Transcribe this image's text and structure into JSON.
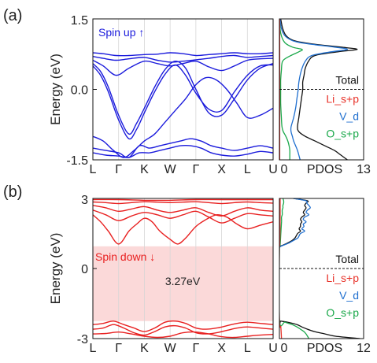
{
  "chart_data": [
    {
      "panel_label": "(a)",
      "type": "line",
      "title": "",
      "ylabel": "Energy (eV)",
      "ylim": [
        -1.5,
        1.5
      ],
      "yticks": [
        "1.5",
        "0.0",
        "-1.5"
      ],
      "ytick_values": [
        1.5,
        0.0,
        -1.5
      ],
      "xticks": [
        "L",
        "Γ",
        "K",
        "W",
        "Γ",
        "X",
        "L",
        "U"
      ],
      "annotation": "Spin up ↑",
      "band_color": "#1b1bdc",
      "bands": [
        {
          "x": [
            0,
            0.4,
            0.9,
            1.4,
            2,
            2.5,
            3,
            3.5,
            4,
            4.5,
            5,
            5.5,
            6,
            6.5,
            7
          ],
          "y": [
            0.78,
            0.76,
            0.72,
            0.72,
            0.74,
            0.75,
            0.78,
            0.76,
            0.72,
            0.74,
            0.76,
            0.78,
            0.76,
            0.76,
            0.78
          ]
        },
        {
          "x": [
            0,
            0.4,
            0.9,
            1.4,
            2,
            2.5,
            3,
            3.5,
            4,
            4.5,
            5,
            5.5,
            6,
            6.5,
            7
          ],
          "y": [
            0.7,
            0.66,
            0.62,
            0.65,
            0.68,
            0.62,
            0.58,
            0.6,
            0.63,
            0.66,
            0.7,
            0.72,
            0.68,
            0.7,
            0.72
          ]
        },
        {
          "x": [
            0,
            0.4,
            0.9,
            1.4,
            2,
            2.5,
            3,
            3.5,
            4,
            4.5,
            5,
            5.5,
            6,
            6.5,
            7
          ],
          "y": [
            0.62,
            0.5,
            0.3,
            0.45,
            0.6,
            0.55,
            0.5,
            0.55,
            0.6,
            0.48,
            0.4,
            0.5,
            0.62,
            0.65,
            0.66
          ]
        },
        {
          "x": [
            0,
            0.3,
            0.6,
            1,
            1.4,
            1.7,
            2,
            2.4,
            2.8,
            3.2,
            3.6,
            4,
            4.5,
            5,
            5.5,
            6,
            6.5,
            7
          ],
          "y": [
            0.55,
            0.38,
            0.05,
            -0.55,
            -0.95,
            -0.72,
            -0.4,
            0.05,
            0.42,
            0.6,
            0.45,
            0.0,
            -0.5,
            -0.55,
            -0.2,
            0.2,
            0.45,
            0.55
          ]
        },
        {
          "x": [
            0,
            0.3,
            0.6,
            1,
            1.4,
            1.7,
            2,
            2.4,
            2.8,
            3.2,
            3.6,
            4,
            4.5,
            5,
            5.5,
            6,
            6.5,
            7
          ],
          "y": [
            0.5,
            0.3,
            -0.05,
            -0.65,
            -1.05,
            -0.85,
            -0.5,
            -0.05,
            0.32,
            0.52,
            0.3,
            -0.08,
            -0.42,
            -0.45,
            -0.05,
            0.3,
            0.5,
            0.52
          ]
        },
        {
          "x": [
            0,
            0.4,
            0.8,
            1.2,
            1.6,
            2,
            2.4,
            2.8,
            3.2,
            3.6,
            4,
            4.4,
            4.8,
            5.2,
            5.6,
            6,
            6.5,
            7
          ],
          "y": [
            -1.0,
            -1.1,
            -1.3,
            -1.45,
            -1.3,
            -1.1,
            -0.95,
            -0.7,
            -0.45,
            -0.2,
            0.1,
            0.25,
            0.2,
            0.0,
            -0.3,
            -0.6,
            -0.55,
            -0.4
          ]
        },
        {
          "x": [
            0,
            0.5,
            1,
            1.4,
            1.8,
            2.2,
            2.6,
            3,
            3.4,
            3.8,
            4.2,
            4.6,
            5,
            5.5,
            6,
            6.5,
            7
          ],
          "y": [
            -1.25,
            -1.3,
            -1.35,
            -1.45,
            -1.2,
            -1.25,
            -1.2,
            -1.15,
            -1.1,
            -1.05,
            -1.1,
            -1.2,
            -1.25,
            -1.3,
            -1.25,
            -1.2,
            -1.25
          ]
        },
        {
          "x": [
            0,
            0.5,
            1,
            1.4,
            1.8,
            2.2,
            2.6,
            3,
            3.4,
            3.8,
            4.2,
            4.6,
            5,
            5.5,
            6,
            6.5,
            7
          ],
          "y": [
            -1.35,
            -1.4,
            -1.42,
            -1.45,
            -1.35,
            -1.35,
            -1.3,
            -1.25,
            -1.2,
            -1.2,
            -1.25,
            -1.35,
            -1.4,
            -1.42,
            -1.38,
            -1.32,
            -1.35
          ]
        }
      ],
      "pdos": {
        "xlabel": "PDOS",
        "xlim": [
          0,
          13
        ],
        "xticks": [
          "0",
          "13"
        ],
        "xtick_values": [
          0,
          13
        ],
        "fermi": 0.0,
        "legend": [
          {
            "name": "Total",
            "color": "#111111"
          },
          {
            "name": "Li_s+p",
            "color": "#e8332a"
          },
          {
            "name": "V_d",
            "color": "#1f6fcf"
          },
          {
            "name": "O_s+p",
            "color": "#1aa84a"
          }
        ],
        "series": [
          {
            "name": "Total",
            "color": "#111111",
            "e": [
              1.5,
              1.3,
              1.15,
              1.05,
              1.0,
              0.95,
              0.9,
              0.85,
              0.8,
              0.72,
              0.6,
              0.45,
              0.3,
              0.15,
              0.0,
              -0.2,
              -0.4,
              -0.6,
              -0.8,
              -0.9,
              -1.0,
              -1.1,
              -1.2,
              -1.3,
              -1.4,
              -1.5
            ],
            "v": [
              0.2,
              0.5,
              1.0,
              2.0,
              3.5,
              6.0,
              9.5,
              12.0,
              9.0,
              5.5,
              4.5,
              4.0,
              3.8,
              3.6,
              3.6,
              3.4,
              3.2,
              3.0,
              2.8,
              3.0,
              4.0,
              5.5,
              7.0,
              8.5,
              9.5,
              10.5
            ]
          },
          {
            "name": "V_d",
            "color": "#1f6fcf",
            "e": [
              1.5,
              1.3,
              1.15,
              1.05,
              1.0,
              0.95,
              0.9,
              0.85,
              0.8,
              0.72,
              0.6,
              0.45,
              0.3,
              0.15,
              0.0,
              -0.2,
              -0.4,
              -0.6,
              -0.8,
              -0.9,
              -1.0,
              -1.1,
              -1.2,
              -1.3,
              -1.4,
              -1.5
            ],
            "v": [
              0.1,
              0.3,
              0.8,
              1.8,
              3.0,
              5.5,
              8.5,
              10.5,
              8.0,
              5.0,
              4.0,
              3.5,
              3.2,
              3.0,
              2.9,
              2.7,
              2.5,
              2.2,
              1.8,
              1.8,
              2.0,
              2.2,
              2.5,
              2.8,
              3.0,
              3.2
            ]
          },
          {
            "name": "O_s+p",
            "color": "#1aa84a",
            "e": [
              1.5,
              1.2,
              1.0,
              0.9,
              0.85,
              0.8,
              0.7,
              0.6,
              0.4,
              0.2,
              0.0,
              -0.3,
              -0.6,
              -0.8,
              -0.9,
              -1.0,
              -1.1,
              -1.2,
              -1.3,
              -1.4,
              -1.5
            ],
            "v": [
              0.0,
              0.2,
              0.8,
              2.0,
              3.5,
              3.0,
              1.5,
              0.5,
              0.3,
              0.2,
              0.2,
              0.2,
              0.3,
              0.4,
              0.6,
              1.0,
              1.3,
              1.5,
              1.6,
              1.6,
              1.6
            ]
          },
          {
            "name": "Li_s+p",
            "color": "#e8332a",
            "e": [
              1.5,
              0.0,
              -1.5
            ],
            "v": [
              0.05,
              0.05,
              0.05
            ]
          }
        ]
      }
    },
    {
      "panel_label": "(b)",
      "type": "line",
      "title": "",
      "ylabel": "Energy (eV)",
      "ylim": [
        -3,
        3
      ],
      "yticks": [
        "3",
        "0",
        "-3"
      ],
      "ytick_values": [
        3,
        0,
        -3
      ],
      "xticks": [
        "L",
        "Γ",
        "K",
        "W",
        "Γ",
        "X",
        "L",
        "U"
      ],
      "annotation": "Spin down ↓",
      "gap_label": "3.27eV",
      "gap": [
        -2.25,
        0.95
      ],
      "gap_color": "#fbd9d9",
      "band_color": "#e82020",
      "bands": [
        {
          "x": [
            0,
            1,
            2,
            3,
            4,
            5,
            6,
            7
          ],
          "y": [
            2.95,
            2.95,
            2.92,
            2.92,
            2.95,
            2.95,
            2.95,
            2.95
          ]
        },
        {
          "x": [
            0,
            0.5,
            1,
            1.5,
            2,
            2.5,
            3,
            3.5,
            4,
            4.5,
            5,
            5.5,
            6,
            6.5,
            7
          ],
          "y": [
            2.85,
            2.82,
            2.78,
            2.82,
            2.86,
            2.84,
            2.82,
            2.84,
            2.86,
            2.82,
            2.78,
            2.82,
            2.85,
            2.82,
            2.8
          ]
        },
        {
          "x": [
            0,
            0.5,
            1,
            1.5,
            2,
            2.5,
            3,
            3.5,
            4,
            4.5,
            5,
            5.5,
            6,
            6.5,
            7
          ],
          "y": [
            2.7,
            2.6,
            2.45,
            2.55,
            2.65,
            2.5,
            2.4,
            2.5,
            2.6,
            2.4,
            2.25,
            2.45,
            2.6,
            2.5,
            2.45
          ]
        },
        {
          "x": [
            0,
            0.5,
            1,
            1.5,
            2,
            2.5,
            3,
            3.5,
            4,
            4.5,
            5,
            5.5,
            6,
            6.5,
            7
          ],
          "y": [
            2.5,
            2.3,
            2.05,
            2.25,
            2.4,
            2.3,
            2.15,
            2.3,
            2.45,
            2.2,
            1.95,
            2.15,
            2.35,
            2.3,
            2.25
          ]
        },
        {
          "x": [
            0,
            0.3,
            0.6,
            1,
            1.4,
            1.7,
            2,
            2.3,
            2.6,
            3,
            3.3,
            3.6,
            4,
            4.4,
            4.8,
            5.2,
            5.6,
            6,
            6.5,
            7
          ],
          "y": [
            2.3,
            2.0,
            1.6,
            1.05,
            1.6,
            1.9,
            2.15,
            2.0,
            1.6,
            1.25,
            1.05,
            1.3,
            1.8,
            2.1,
            2.3,
            2.2,
            1.9,
            1.7,
            1.85,
            2.0
          ]
        },
        {
          "x": [
            0,
            0.4,
            0.8,
            1.2,
            1.6,
            2,
            2.4,
            2.8,
            3.2,
            3.6,
            4,
            4.4,
            4.8,
            5.2,
            5.6,
            6,
            6.5,
            7
          ],
          "y": [
            -2.4,
            -2.35,
            -2.25,
            -2.4,
            -2.55,
            -2.7,
            -2.55,
            -2.3,
            -2.25,
            -2.35,
            -2.55,
            -2.6,
            -2.55,
            -2.45,
            -2.35,
            -2.3,
            -2.35,
            -2.4
          ]
        },
        {
          "x": [
            0,
            0.4,
            0.8,
            1.2,
            1.6,
            2,
            2.4,
            2.8,
            3.2,
            3.6,
            4,
            4.4,
            4.8,
            5.2,
            5.6,
            6,
            6.5,
            7
          ],
          "y": [
            -2.6,
            -2.55,
            -2.4,
            -2.55,
            -2.75,
            -2.85,
            -2.7,
            -2.5,
            -2.45,
            -2.55,
            -2.75,
            -2.8,
            -2.75,
            -2.65,
            -2.55,
            -2.5,
            -2.55,
            -2.6
          ]
        },
        {
          "x": [
            0,
            0.5,
            1,
            1.5,
            2,
            2.5,
            3,
            3.5,
            4,
            4.5,
            5,
            5.5,
            6,
            6.5,
            7
          ],
          "y": [
            -2.8,
            -2.78,
            -2.72,
            -2.8,
            -2.9,
            -2.95,
            -2.9,
            -2.75,
            -2.72,
            -2.8,
            -2.92,
            -2.95,
            -2.9,
            -2.85,
            -2.82
          ]
        }
      ],
      "pdos": {
        "xlabel": "PDOS",
        "xlim": [
          0,
          12
        ],
        "xticks": [
          "0",
          "12"
        ],
        "xtick_values": [
          0,
          12
        ],
        "fermi": 0.0,
        "legend": [
          {
            "name": "Total",
            "color": "#111111"
          },
          {
            "name": "Li_s+p",
            "color": "#e8332a"
          },
          {
            "name": "V_d",
            "color": "#1f6fcf"
          },
          {
            "name": "O_s+p",
            "color": "#1aa84a"
          }
        ],
        "series": [
          {
            "name": "Total",
            "color": "#111111",
            "e": [
              3,
              2.9,
              2.8,
              2.7,
              2.6,
              2.5,
              2.4,
              2.3,
              2.2,
              2.1,
              2.0,
              1.9,
              1.8,
              1.7,
              1.6,
              1.5,
              1.4,
              1.3,
              1.2,
              1.1,
              1.0,
              0.95,
              0.9,
              -2.2,
              -2.25,
              -2.3,
              -2.4,
              -2.5,
              -2.6,
              -2.7,
              -2.8,
              -2.9,
              -3
            ],
            "v": [
              2,
              4.0,
              3.8,
              3.6,
              3.8,
              3.6,
              3.4,
              3.6,
              3.2,
              3.0,
              3.2,
              3.0,
              3.0,
              2.8,
              3.0,
              2.6,
              2.4,
              2.2,
              1.8,
              1.2,
              0.5,
              0.1,
              0,
              0,
              0.2,
              1.2,
              2.5,
              3.2,
              4.0,
              5.0,
              6.5,
              8.0,
              11.5
            ]
          },
          {
            "name": "V_d",
            "color": "#1f6fcf",
            "e": [
              3,
              2.9,
              2.8,
              2.7,
              2.6,
              2.5,
              2.4,
              2.3,
              2.2,
              2.1,
              2.0,
              1.9,
              1.8,
              1.7,
              1.6,
              1.5,
              1.4,
              1.3,
              1.2,
              1.1,
              1.0,
              0.95,
              0.9
            ],
            "v": [
              2,
              3.8,
              3.9,
              4.2,
              4.4,
              4.0,
              3.8,
              4.2,
              3.6,
              3.4,
              3.8,
              3.4,
              3.5,
              3.2,
              3.6,
              3.0,
              2.8,
              2.6,
              2.0,
              1.4,
              0.6,
              0.2,
              0
            ]
          },
          {
            "name": "O_s+p",
            "color": "#1aa84a",
            "e": [
              3,
              2.9,
              2.8,
              2.7,
              2.6,
              2.5,
              2.4,
              2.3,
              2.2,
              2.1,
              2.0,
              1.5,
              1.0,
              0.9,
              -2.2,
              -2.3,
              -2.4,
              -2.5,
              -2.6,
              -2.7,
              -2.8,
              -2.9,
              -3
            ],
            "v": [
              0.5,
              0.6,
              0.6,
              0.5,
              0.5,
              0.4,
              0.4,
              0.4,
              0.3,
              0.3,
              0.3,
              0.2,
              0.1,
              0,
              0,
              0.8,
              1.8,
              2.5,
              3.0,
              3.5,
              3.8,
              4.0,
              4.2
            ]
          },
          {
            "name": "Li_s+p",
            "color": "#e8332a",
            "e": [
              3,
              2.0,
              1.0,
              0.9,
              -2.2,
              -2.5,
              -3
            ],
            "v": [
              0.1,
              0.1,
              0.05,
              0,
              0,
              0.2,
              0.3
            ]
          }
        ]
      }
    }
  ]
}
